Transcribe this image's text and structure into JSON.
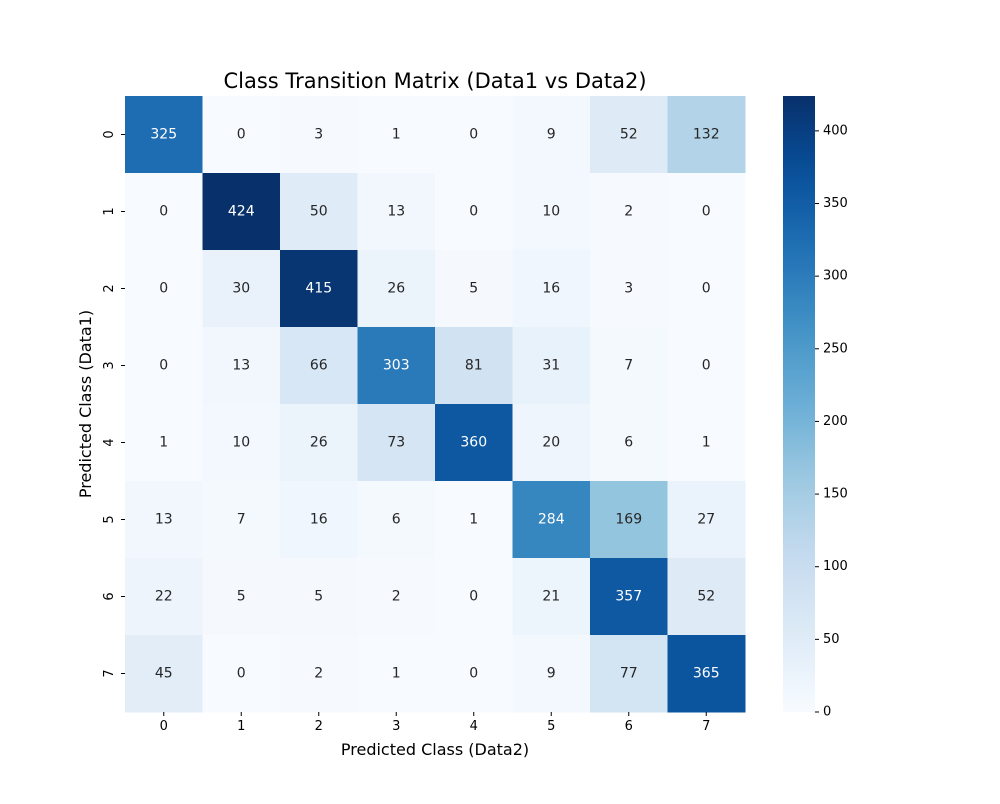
{
  "chart_data": {
    "type": "heatmap",
    "title": "Class Transition Matrix (Data1 vs Data2)",
    "xlabel": "Predicted Class (Data2)",
    "ylabel": "Predicted Class (Data1)",
    "x_categories": [
      "0",
      "1",
      "2",
      "3",
      "4",
      "5",
      "6",
      "7"
    ],
    "y_categories": [
      "0",
      "1",
      "2",
      "3",
      "4",
      "5",
      "6",
      "7"
    ],
    "values": [
      [
        325,
        0,
        3,
        1,
        0,
        9,
        52,
        132
      ],
      [
        0,
        424,
        50,
        13,
        0,
        10,
        2,
        0
      ],
      [
        0,
        30,
        415,
        26,
        5,
        16,
        3,
        0
      ],
      [
        0,
        13,
        66,
        303,
        81,
        31,
        7,
        0
      ],
      [
        1,
        10,
        26,
        73,
        360,
        20,
        6,
        1
      ],
      [
        13,
        7,
        16,
        6,
        1,
        284,
        169,
        27
      ],
      [
        22,
        5,
        5,
        2,
        0,
        21,
        357,
        52
      ],
      [
        45,
        0,
        2,
        1,
        0,
        9,
        77,
        365
      ]
    ],
    "colorbar": {
      "colormap": "Blues",
      "min": 0,
      "max": 424,
      "ticks": [
        0,
        50,
        100,
        150,
        200,
        250,
        300,
        350,
        400
      ]
    },
    "annotation_colors": {
      "dark": "#262626",
      "light": "#ffffff"
    }
  }
}
